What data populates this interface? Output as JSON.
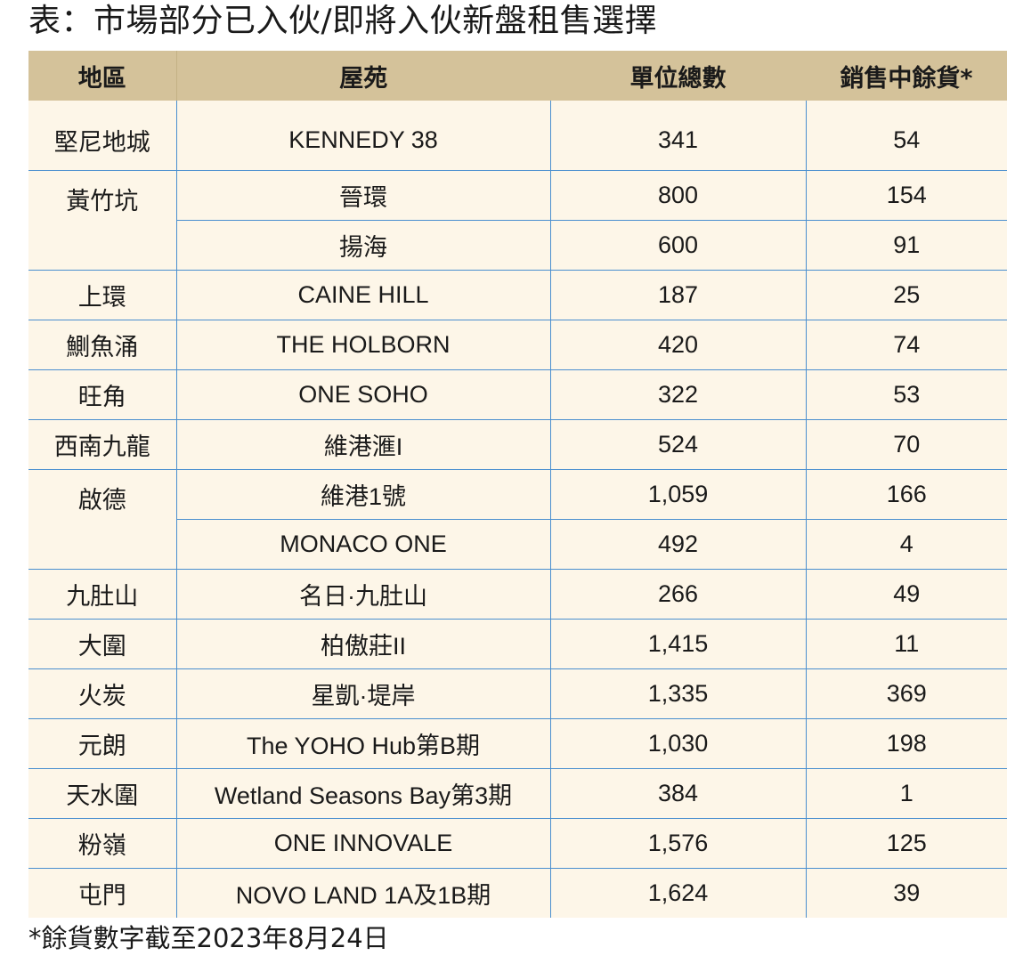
{
  "title": "表：市場部分已入伙/即將入伙新盤租售選擇",
  "table": {
    "headers": [
      "地區",
      "屋苑",
      "單位總數",
      "銷售中餘貨*"
    ],
    "rows": [
      {
        "district": "堅尼地城",
        "estate": "KENNEDY 38",
        "units": "341",
        "stock": "54"
      },
      {
        "district": "黃竹坑",
        "estate": "晉環",
        "units": "800",
        "stock": "154"
      },
      {
        "district": "",
        "estate": "揚海",
        "units": "600",
        "stock": "91"
      },
      {
        "district": "上環",
        "estate": "CAINE HILL",
        "units": "187",
        "stock": "25"
      },
      {
        "district": "鰂魚涌",
        "estate": "THE HOLBORN",
        "units": "420",
        "stock": "74"
      },
      {
        "district": "旺角",
        "estate": "ONE SOHO",
        "units": "322",
        "stock": "53"
      },
      {
        "district": "西南九龍",
        "estate": "維港滙I",
        "units": "524",
        "stock": "70"
      },
      {
        "district": "啟德",
        "estate": "維港1號",
        "units": "1,059",
        "stock": "166"
      },
      {
        "district": "",
        "estate": "MONACO ONE",
        "units": "492",
        "stock": "4"
      },
      {
        "district": "九肚山",
        "estate": "名日·九肚山",
        "units": "266",
        "stock": "49"
      },
      {
        "district": "大圍",
        "estate": "柏傲莊II",
        "units": "1,415",
        "stock": "11"
      },
      {
        "district": "火炭",
        "estate": "星凱·堤岸",
        "units": "1,335",
        "stock": "369"
      },
      {
        "district": "元朗",
        "estate": "The YOHO Hub第B期",
        "units": "1,030",
        "stock": "198"
      },
      {
        "district": "天水圍",
        "estate": "Wetland Seasons Bay第3期",
        "units": "384",
        "stock": "1"
      },
      {
        "district": "粉嶺",
        "estate": "ONE INNOVALE",
        "units": "1,576",
        "stock": "125"
      },
      {
        "district": "屯門",
        "estate": "NOVO LAND 1A及1B期",
        "units": "1,624",
        "stock": "39"
      }
    ]
  },
  "footnote": "*餘貨數字截至2023年8月24日",
  "colors": {
    "header_bg": "#d4c29a",
    "table_bg": "#fdf6e8",
    "rule": "#4a8fcf"
  }
}
